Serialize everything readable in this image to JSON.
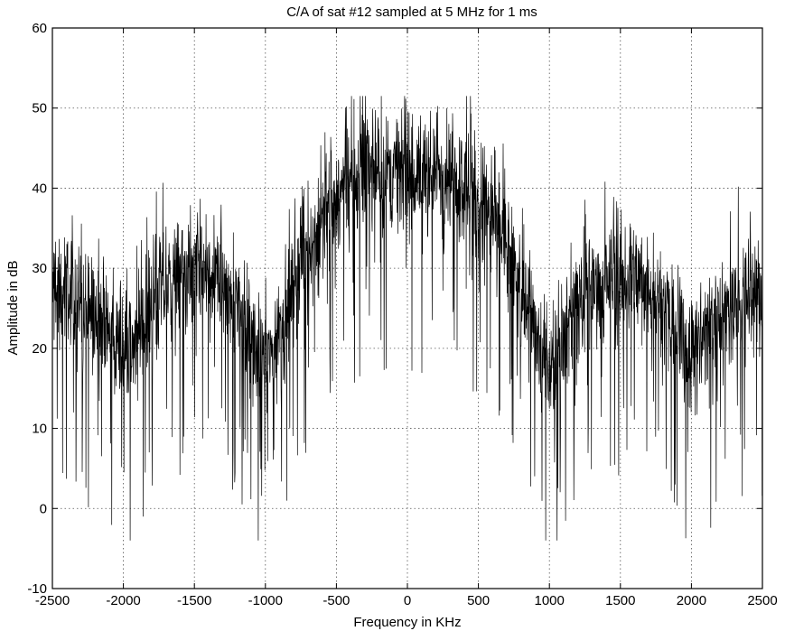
{
  "chart_data": {
    "type": "line",
    "title": "C/A of sat #12 sampled at 5 MHz for 1 ms",
    "xlabel": "Frequency in KHz",
    "ylabel": "Amplitude in dB",
    "xlim": [
      -2500,
      2500
    ],
    "ylim": [
      -10,
      60
    ],
    "xticks": [
      -2500,
      -2000,
      -1500,
      -1000,
      -500,
      0,
      500,
      1000,
      1500,
      2000,
      2500
    ],
    "yticks": [
      -10,
      0,
      10,
      20,
      30,
      40,
      50,
      60
    ],
    "xtick_labels": [
      "-2500",
      "-2000",
      "-1500",
      "-1000",
      "-500",
      "0",
      "500",
      "1000",
      "1500",
      "2000",
      "2500"
    ],
    "ytick_labels": [
      "-10",
      "0",
      "10",
      "20",
      "30",
      "40",
      "50",
      "60"
    ],
    "grid": true,
    "grid_style": "dotted",
    "line_color": "#000000",
    "series": [
      {
        "envelope_x": [
          -2500,
          -2400,
          -2300,
          -2200,
          -2100,
          -2000,
          -1900,
          -1800,
          -1700,
          -1600,
          -1500,
          -1400,
          -1300,
          -1200,
          -1100,
          -1000,
          -900,
          -800,
          -700,
          -600,
          -500,
          -400,
          -300,
          -200,
          -100,
          0,
          100,
          200,
          300,
          400,
          500,
          600,
          700,
          800,
          900,
          1000,
          1100,
          1200,
          1300,
          1400,
          1500,
          1600,
          1700,
          1800,
          1900,
          2000,
          2100,
          2200,
          2300,
          2400,
          2500
        ],
        "envelope_y": [
          27,
          27,
          26,
          24,
          22,
          20,
          21,
          25,
          28,
          29,
          29,
          29,
          28,
          26,
          22,
          18,
          22,
          28,
          33,
          36,
          39,
          41,
          42,
          42,
          42,
          41,
          42,
          42,
          42,
          41,
          39,
          36,
          33,
          28,
          22,
          18,
          22,
          26,
          28,
          29,
          29,
          29,
          28,
          25,
          21,
          20,
          22,
          24,
          26,
          27,
          27
        ],
        "peak_y": 51.5,
        "min_y": -4
      }
    ]
  }
}
